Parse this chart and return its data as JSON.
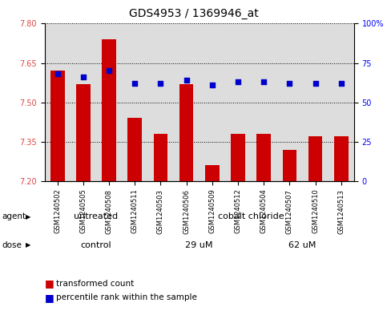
{
  "title": "GDS4953 / 1369946_at",
  "samples": [
    "GSM1240502",
    "GSM1240505",
    "GSM1240508",
    "GSM1240511",
    "GSM1240503",
    "GSM1240506",
    "GSM1240509",
    "GSM1240512",
    "GSM1240504",
    "GSM1240507",
    "GSM1240510",
    "GSM1240513"
  ],
  "bar_values": [
    7.62,
    7.57,
    7.74,
    7.44,
    7.38,
    7.57,
    7.26,
    7.38,
    7.38,
    7.32,
    7.37,
    7.37
  ],
  "percentile_values": [
    68,
    66,
    70,
    62,
    62,
    64,
    61,
    63,
    63,
    62,
    62,
    62
  ],
  "ymin": 7.2,
  "ymax": 7.8,
  "yticks": [
    7.2,
    7.35,
    7.5,
    7.65,
    7.8
  ],
  "y2min": 0,
  "y2max": 100,
  "y2ticks": [
    0,
    25,
    50,
    75,
    100
  ],
  "y2ticklabels": [
    "0",
    "25",
    "50",
    "75",
    "100%"
  ],
  "bar_color": "#cc0000",
  "percentile_color": "#0000cc",
  "agent_groups": [
    {
      "label": "untreated",
      "start": 0,
      "end": 4,
      "color": "#aaeaaa"
    },
    {
      "label": "cobalt chloride",
      "start": 4,
      "end": 12,
      "color": "#55dd55"
    }
  ],
  "dose_groups": [
    {
      "label": "control",
      "start": 0,
      "end": 4,
      "color": "#ddaadd"
    },
    {
      "label": "29 uM",
      "start": 4,
      "end": 8,
      "color": "#ee88ee"
    },
    {
      "label": "62 uM",
      "start": 8,
      "end": 12,
      "color": "#ee66ee"
    }
  ],
  "legend_bar_label": "transformed count",
  "legend_dot_label": "percentile rank within the sample",
  "agent_label": "agent",
  "dose_label": "dose",
  "plot_bg_color": "#dddddd",
  "bar_width": 0.55,
  "title_fontsize": 10,
  "tick_fontsize": 7,
  "sample_fontsize": 6,
  "legend_fontsize": 7.5,
  "group_fontsize": 8
}
